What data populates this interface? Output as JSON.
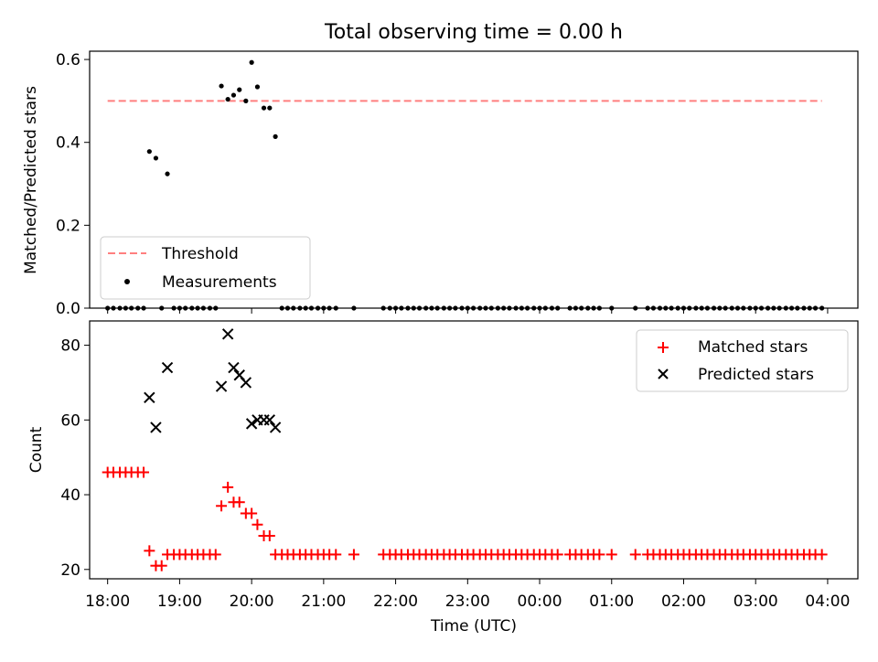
{
  "chart_data": [
    {
      "type": "scatter",
      "title": "Total observing time = 0.00 h",
      "xlabel": "",
      "ylabel": "Matched/Predicted stars",
      "xlim": [
        17.75,
        28.42
      ],
      "ylim": [
        0.0,
        0.62
      ],
      "y_ticks": [
        0.0,
        0.2,
        0.4,
        0.6
      ],
      "y_tick_labels": [
        "0.0",
        "0.2",
        "0.4",
        "0.6"
      ],
      "grid": false,
      "legend_position": "lower-left",
      "threshold": {
        "name": "Threshold",
        "value": 0.5,
        "x_range": [
          18.0,
          27.92
        ],
        "color": "#ff7f7f",
        "style": "dashed"
      },
      "series": [
        {
          "name": "Measurements",
          "color": "#000000",
          "marker": "dot",
          "points": [
            [
              18.0,
              0
            ],
            [
              18.08,
              0
            ],
            [
              18.17,
              0
            ],
            [
              18.25,
              0
            ],
            [
              18.33,
              0
            ],
            [
              18.42,
              0
            ],
            [
              18.5,
              0
            ],
            [
              18.58,
              0.378
            ],
            [
              18.67,
              0.362
            ],
            [
              18.75,
              0
            ],
            [
              18.83,
              0.324
            ],
            [
              18.92,
              0
            ],
            [
              19.0,
              0
            ],
            [
              19.08,
              0
            ],
            [
              19.17,
              0
            ],
            [
              19.25,
              0
            ],
            [
              19.33,
              0
            ],
            [
              19.42,
              0
            ],
            [
              19.5,
              0
            ],
            [
              19.58,
              0.536
            ],
            [
              19.67,
              0.504
            ],
            [
              19.75,
              0.514
            ],
            [
              19.83,
              0.527
            ],
            [
              19.92,
              0.5
            ],
            [
              20.0,
              0.593
            ],
            [
              20.08,
              0.534
            ],
            [
              20.17,
              0.483
            ],
            [
              20.25,
              0.483
            ],
            [
              20.33,
              0.414
            ],
            [
              20.42,
              0
            ],
            [
              20.5,
              0
            ],
            [
              20.58,
              0
            ],
            [
              20.67,
              0
            ],
            [
              20.75,
              0
            ],
            [
              20.83,
              0
            ],
            [
              20.92,
              0
            ],
            [
              21.0,
              0
            ],
            [
              21.08,
              0
            ],
            [
              21.17,
              0
            ],
            [
              21.42,
              0
            ],
            [
              21.83,
              0
            ],
            [
              21.92,
              0
            ],
            [
              22.0,
              0
            ],
            [
              22.08,
              0
            ],
            [
              22.17,
              0
            ],
            [
              22.25,
              0
            ],
            [
              22.33,
              0
            ],
            [
              22.42,
              0
            ],
            [
              22.5,
              0
            ],
            [
              22.58,
              0
            ],
            [
              22.67,
              0
            ],
            [
              22.75,
              0
            ],
            [
              22.83,
              0
            ],
            [
              22.92,
              0
            ],
            [
              23.0,
              0
            ],
            [
              23.08,
              0
            ],
            [
              23.17,
              0
            ],
            [
              23.25,
              0
            ],
            [
              23.33,
              0
            ],
            [
              23.42,
              0
            ],
            [
              23.5,
              0
            ],
            [
              23.58,
              0
            ],
            [
              23.67,
              0
            ],
            [
              23.75,
              0
            ],
            [
              23.83,
              0
            ],
            [
              23.92,
              0
            ],
            [
              24.0,
              0
            ],
            [
              24.08,
              0
            ],
            [
              24.17,
              0
            ],
            [
              24.25,
              0
            ],
            [
              24.42,
              0
            ],
            [
              24.5,
              0
            ],
            [
              24.58,
              0
            ],
            [
              24.67,
              0
            ],
            [
              24.75,
              0
            ],
            [
              24.83,
              0
            ],
            [
              25.0,
              0
            ],
            [
              25.33,
              0
            ],
            [
              25.5,
              0
            ],
            [
              25.58,
              0
            ],
            [
              25.67,
              0
            ],
            [
              25.75,
              0
            ],
            [
              25.83,
              0
            ],
            [
              25.92,
              0
            ],
            [
              26.0,
              0
            ],
            [
              26.08,
              0
            ],
            [
              26.17,
              0
            ],
            [
              26.25,
              0
            ],
            [
              26.33,
              0
            ],
            [
              26.42,
              0
            ],
            [
              26.5,
              0
            ],
            [
              26.58,
              0
            ],
            [
              26.67,
              0
            ],
            [
              26.75,
              0
            ],
            [
              26.83,
              0
            ],
            [
              26.92,
              0
            ],
            [
              27.0,
              0
            ],
            [
              27.08,
              0
            ],
            [
              27.17,
              0
            ],
            [
              27.25,
              0
            ],
            [
              27.33,
              0
            ],
            [
              27.42,
              0
            ],
            [
              27.5,
              0
            ],
            [
              27.58,
              0
            ],
            [
              27.67,
              0
            ],
            [
              27.75,
              0
            ],
            [
              27.83,
              0
            ],
            [
              27.92,
              0
            ]
          ]
        }
      ]
    },
    {
      "type": "scatter",
      "title": "",
      "xlabel": "Time (UTC)",
      "ylabel": "Count",
      "xlim": [
        17.75,
        28.42
      ],
      "ylim": [
        17.5,
        86.5
      ],
      "x_ticks": [
        18,
        19,
        20,
        21,
        22,
        23,
        24,
        25,
        26,
        27,
        28
      ],
      "x_tick_labels": [
        "18:00",
        "19:00",
        "20:00",
        "21:00",
        "22:00",
        "23:00",
        "00:00",
        "01:00",
        "02:00",
        "03:00",
        "04:00"
      ],
      "y_ticks": [
        20,
        40,
        60,
        80
      ],
      "y_tick_labels": [
        "20",
        "40",
        "60",
        "80"
      ],
      "grid": false,
      "legend_position": "upper-right",
      "series": [
        {
          "name": "Matched stars",
          "color": "#ff0000",
          "marker": "plus",
          "points": [
            [
              18.0,
              46
            ],
            [
              18.08,
              46
            ],
            [
              18.17,
              46
            ],
            [
              18.25,
              46
            ],
            [
              18.33,
              46
            ],
            [
              18.42,
              46
            ],
            [
              18.5,
              46
            ],
            [
              18.58,
              25
            ],
            [
              18.67,
              21
            ],
            [
              18.75,
              21
            ],
            [
              18.83,
              24
            ],
            [
              18.92,
              24
            ],
            [
              19.0,
              24
            ],
            [
              19.08,
              24
            ],
            [
              19.17,
              24
            ],
            [
              19.25,
              24
            ],
            [
              19.33,
              24
            ],
            [
              19.42,
              24
            ],
            [
              19.5,
              24
            ],
            [
              19.58,
              37
            ],
            [
              19.67,
              42
            ],
            [
              19.75,
              38
            ],
            [
              19.83,
              38
            ],
            [
              19.92,
              35
            ],
            [
              20.0,
              35
            ],
            [
              20.08,
              32
            ],
            [
              20.17,
              29
            ],
            [
              20.25,
              29
            ],
            [
              20.33,
              24
            ],
            [
              20.42,
              24
            ],
            [
              20.5,
              24
            ],
            [
              20.58,
              24
            ],
            [
              20.67,
              24
            ],
            [
              20.75,
              24
            ],
            [
              20.83,
              24
            ],
            [
              20.92,
              24
            ],
            [
              21.0,
              24
            ],
            [
              21.08,
              24
            ],
            [
              21.17,
              24
            ],
            [
              21.42,
              24
            ],
            [
              21.83,
              24
            ],
            [
              21.92,
              24
            ],
            [
              22.0,
              24
            ],
            [
              22.08,
              24
            ],
            [
              22.17,
              24
            ],
            [
              22.25,
              24
            ],
            [
              22.33,
              24
            ],
            [
              22.42,
              24
            ],
            [
              22.5,
              24
            ],
            [
              22.58,
              24
            ],
            [
              22.67,
              24
            ],
            [
              22.75,
              24
            ],
            [
              22.83,
              24
            ],
            [
              22.92,
              24
            ],
            [
              23.0,
              24
            ],
            [
              23.08,
              24
            ],
            [
              23.17,
              24
            ],
            [
              23.25,
              24
            ],
            [
              23.33,
              24
            ],
            [
              23.42,
              24
            ],
            [
              23.5,
              24
            ],
            [
              23.58,
              24
            ],
            [
              23.67,
              24
            ],
            [
              23.75,
              24
            ],
            [
              23.83,
              24
            ],
            [
              23.92,
              24
            ],
            [
              24.0,
              24
            ],
            [
              24.08,
              24
            ],
            [
              24.17,
              24
            ],
            [
              24.25,
              24
            ],
            [
              24.42,
              24
            ],
            [
              24.5,
              24
            ],
            [
              24.58,
              24
            ],
            [
              24.67,
              24
            ],
            [
              24.75,
              24
            ],
            [
              24.83,
              24
            ],
            [
              25.0,
              24
            ],
            [
              25.33,
              24
            ],
            [
              25.5,
              24
            ],
            [
              25.58,
              24
            ],
            [
              25.67,
              24
            ],
            [
              25.75,
              24
            ],
            [
              25.83,
              24
            ],
            [
              25.92,
              24
            ],
            [
              26.0,
              24
            ],
            [
              26.08,
              24
            ],
            [
              26.17,
              24
            ],
            [
              26.25,
              24
            ],
            [
              26.33,
              24
            ],
            [
              26.42,
              24
            ],
            [
              26.5,
              24
            ],
            [
              26.58,
              24
            ],
            [
              26.67,
              24
            ],
            [
              26.75,
              24
            ],
            [
              26.83,
              24
            ],
            [
              26.92,
              24
            ],
            [
              27.0,
              24
            ],
            [
              27.08,
              24
            ],
            [
              27.17,
              24
            ],
            [
              27.25,
              24
            ],
            [
              27.33,
              24
            ],
            [
              27.42,
              24
            ],
            [
              27.5,
              24
            ],
            [
              27.58,
              24
            ],
            [
              27.67,
              24
            ],
            [
              27.75,
              24
            ],
            [
              27.83,
              24
            ],
            [
              27.92,
              24
            ]
          ]
        },
        {
          "name": "Predicted stars",
          "color": "#000000",
          "marker": "x",
          "points": [
            [
              18.58,
              66
            ],
            [
              18.67,
              58
            ],
            [
              18.83,
              74
            ],
            [
              19.58,
              69
            ],
            [
              19.67,
              83
            ],
            [
              19.75,
              74
            ],
            [
              19.83,
              72
            ],
            [
              19.92,
              70
            ],
            [
              20.0,
              59
            ],
            [
              20.08,
              60
            ],
            [
              20.17,
              60
            ],
            [
              20.25,
              60
            ],
            [
              20.33,
              58
            ]
          ]
        }
      ]
    }
  ]
}
